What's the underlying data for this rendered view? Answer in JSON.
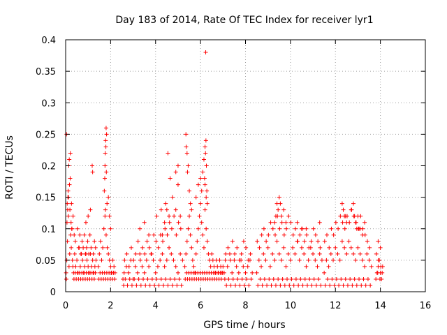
{
  "chart_data": {
    "type": "scatter",
    "title": "Day 183 of 2014, Rate Of TEC Index for receiver lyr1",
    "xlabel": "GPS time / hours",
    "ylabel": "ROTI / TECUs",
    "xlim": [
      0,
      16
    ],
    "ylim": [
      0,
      0.4
    ],
    "grid": true,
    "x_ticks": [
      0,
      2,
      4,
      6,
      8,
      10,
      12,
      14,
      16
    ],
    "x_tick_labels": [
      "0",
      "2",
      "4",
      "6",
      "8",
      "10",
      "12",
      "14",
      "16"
    ],
    "y_ticks": [
      0,
      0.05,
      0.1,
      0.15,
      0.2,
      0.25,
      0.3,
      0.35,
      0.4
    ],
    "y_tick_labels": [
      "0",
      "0.05",
      "0.1",
      "0.15",
      "0.2",
      "0.25",
      "0.3",
      "0.35",
      "0.4"
    ],
    "marker": "+",
    "marker_color": "#ff0000",
    "series": [
      {
        "name": "lyr1 ROTI",
        "x": [
          0.02,
          0.05,
          0.08,
          0.12,
          0.15,
          0.18,
          0.22,
          0.25,
          0.3,
          0.35,
          0.4,
          0.45,
          0.5,
          0.55,
          0.6,
          0.65,
          0.7,
          0.75,
          0.8,
          0.85,
          0.9,
          0.95,
          1.0,
          1.05,
          1.1,
          1.15,
          1.2,
          1.25,
          1.3,
          1.35,
          0.04,
          0.1,
          0.14,
          0.2,
          0.27,
          0.33,
          0.38,
          0.43,
          0.52,
          0.58,
          0.63,
          0.68,
          0.73,
          0.78,
          0.83,
          0.88,
          0.93,
          0.98,
          1.03,
          1.08,
          1.13,
          1.18,
          1.23,
          1.28,
          1.33,
          0.03,
          0.07,
          0.11,
          0.16,
          0.19,
          0.24,
          0.28,
          0.32,
          0.37,
          0.42,
          0.47,
          0.53,
          0.57,
          0.62,
          0.67,
          0.72,
          0.77,
          0.82,
          0.87,
          0.92,
          0.97,
          1.02,
          1.07,
          1.12,
          1.17,
          1.22,
          1.27,
          1.32,
          0.06,
          0.09,
          0.13,
          0.17,
          0.21,
          0.26,
          1.1,
          1.2,
          1.0,
          0.9,
          1.45,
          1.5,
          1.55,
          1.6,
          1.65,
          1.7,
          1.75,
          1.8,
          1.85,
          1.9,
          1.95,
          2.0,
          2.05,
          2.1,
          2.15,
          2.2,
          1.48,
          1.53,
          1.58,
          1.63,
          1.68,
          1.73,
          1.78,
          1.83,
          1.88,
          1.93,
          1.98,
          2.03,
          2.08,
          2.13,
          2.18,
          1.72,
          1.75,
          1.78,
          1.8,
          1.82,
          1.76,
          1.74,
          1.79,
          1.81,
          1.77,
          1.84,
          1.9,
          1.95,
          2.0,
          2.55,
          2.6,
          2.7,
          2.8,
          2.9,
          3.0,
          3.1,
          3.2,
          3.3,
          3.4,
          3.5,
          3.6,
          3.7,
          3.8,
          3.9,
          4.0,
          4.1,
          4.2,
          4.3,
          4.4,
          4.5,
          4.6,
          4.7,
          4.8,
          4.9,
          5.0,
          5.1,
          5.2,
          2.58,
          2.65,
          2.75,
          2.85,
          2.95,
          3.05,
          3.15,
          3.25,
          3.35,
          3.45,
          3.55,
          3.65,
          3.75,
          3.85,
          3.95,
          4.05,
          4.15,
          4.25,
          4.35,
          4.45,
          4.55,
          4.65,
          4.75,
          4.85,
          4.95,
          5.05,
          5.15,
          2.62,
          2.72,
          2.82,
          2.92,
          3.02,
          3.12,
          3.22,
          3.32,
          3.42,
          3.52,
          3.62,
          3.72,
          3.82,
          3.92,
          4.02,
          4.12,
          4.22,
          4.32,
          4.42,
          4.52,
          4.62,
          4.72,
          4.82,
          4.92,
          5.02,
          5.12,
          3.3,
          3.5,
          3.7,
          4.05,
          4.25,
          4.45,
          4.6,
          4.75,
          4.9,
          5.0,
          5.1,
          4.5,
          4.4,
          4.3,
          5.3,
          5.35,
          5.4,
          5.45,
          5.5,
          5.55,
          5.6,
          5.65,
          5.7,
          5.75,
          5.8,
          5.85,
          5.9,
          5.95,
          6.0,
          6.05,
          6.1,
          6.15,
          6.2,
          6.25,
          6.3,
          6.35,
          6.4,
          6.45,
          6.5,
          6.55,
          6.6,
          6.65,
          6.7,
          6.75,
          6.8,
          6.85,
          6.9,
          6.95,
          7.0,
          5.32,
          5.38,
          5.42,
          5.48,
          5.52,
          5.58,
          5.62,
          5.68,
          5.72,
          5.78,
          5.82,
          5.88,
          5.92,
          5.98,
          6.02,
          6.08,
          6.12,
          6.18,
          6.22,
          6.28,
          6.32,
          6.38,
          6.42,
          6.48,
          6.52,
          6.58,
          6.62,
          6.68,
          6.72,
          6.78,
          6.82,
          6.88,
          6.92,
          6.98,
          5.35,
          5.4,
          5.45,
          5.36,
          5.42,
          5.5,
          5.55,
          5.6,
          5.8,
          5.9,
          6.0,
          6.05,
          6.1,
          6.15,
          6.2,
          6.25,
          6.3,
          6.2,
          6.22,
          6.24,
          6.26,
          6.18,
          6.28,
          5.0,
          4.9,
          4.65,
          4.55,
          6.23,
          7.05,
          7.1,
          7.2,
          7.3,
          7.4,
          7.5,
          7.6,
          7.7,
          7.8,
          7.9,
          8.0,
          8.1,
          8.2,
          8.3,
          7.08,
          7.15,
          7.25,
          7.35,
          7.45,
          7.55,
          7.65,
          7.75,
          7.85,
          7.95,
          8.05,
          8.15,
          8.25,
          7.12,
          7.22,
          7.32,
          7.42,
          7.52,
          7.62,
          7.72,
          7.82,
          7.92,
          8.02,
          8.12,
          8.22,
          8.5,
          8.6,
          8.7,
          8.8,
          8.9,
          9.0,
          9.1,
          9.2,
          9.3,
          9.4,
          9.5,
          9.6,
          9.7,
          9.8,
          9.9,
          10.0,
          10.1,
          10.2,
          10.3,
          10.4,
          10.5,
          10.6,
          10.7,
          10.8,
          10.9,
          11.0,
          11.1,
          11.2,
          11.3,
          11.4,
          8.55,
          8.65,
          8.75,
          8.85,
          8.95,
          9.05,
          9.15,
          9.25,
          9.35,
          9.45,
          9.55,
          9.65,
          9.75,
          9.85,
          9.95,
          10.05,
          10.15,
          10.25,
          10.35,
          10.45,
          10.55,
          10.65,
          10.75,
          10.85,
          10.95,
          11.05,
          11.15,
          11.25,
          11.35,
          8.52,
          8.62,
          8.72,
          8.82,
          8.92,
          9.02,
          9.12,
          9.22,
          9.32,
          9.42,
          9.52,
          9.62,
          9.72,
          9.82,
          9.92,
          10.02,
          10.12,
          10.22,
          10.32,
          10.42,
          10.52,
          10.62,
          10.72,
          10.82,
          10.92,
          11.02,
          11.12,
          11.22,
          11.32,
          9.4,
          9.45,
          9.5,
          9.55,
          9.6,
          9.3,
          9.35,
          9.7,
          9.8,
          10.3,
          10.5,
          10.7,
          11.3,
          11.5,
          11.6,
          11.7,
          11.8,
          11.9,
          12.0,
          12.1,
          12.2,
          12.3,
          12.4,
          12.5,
          12.6,
          12.7,
          12.8,
          12.9,
          13.0,
          13.1,
          13.2,
          13.3,
          13.4,
          13.5,
          13.6,
          11.55,
          11.65,
          11.75,
          11.85,
          11.95,
          12.05,
          12.15,
          12.25,
          12.35,
          12.45,
          12.55,
          12.65,
          12.75,
          12.85,
          12.95,
          13.05,
          13.15,
          13.25,
          13.35,
          13.45,
          13.55,
          11.52,
          11.62,
          11.72,
          11.82,
          11.92,
          12.02,
          12.12,
          12.22,
          12.32,
          12.42,
          12.52,
          12.62,
          12.72,
          12.82,
          12.92,
          13.02,
          13.12,
          13.22,
          13.32,
          13.42,
          13.52,
          12.3,
          12.35,
          12.4,
          12.5,
          12.7,
          12.8,
          12.85,
          12.9,
          12.95,
          13.0,
          13.1,
          13.2,
          13.3,
          12.45,
          13.05,
          13.8,
          13.85,
          13.9,
          13.95,
          14.0,
          14.05,
          14.1,
          13.82,
          13.88,
          13.92,
          13.98,
          14.02,
          14.08,
          13.9,
          14.0
        ],
        "y": [
          0.03,
          0.05,
          0.08,
          0.12,
          0.04,
          0.06,
          0.09,
          0.07,
          0.05,
          0.03,
          0.06,
          0.04,
          0.05,
          0.03,
          0.07,
          0.04,
          0.06,
          0.05,
          0.03,
          0.04,
          0.06,
          0.05,
          0.04,
          0.03,
          0.06,
          0.04,
          0.05,
          0.03,
          0.04,
          0.05,
          0.25,
          0.15,
          0.2,
          0.18,
          0.1,
          0.12,
          0.09,
          0.08,
          0.1,
          0.07,
          0.09,
          0.06,
          0.08,
          0.07,
          0.09,
          0.06,
          0.07,
          0.08,
          0.06,
          0.09,
          0.07,
          0.2,
          0.06,
          0.08,
          0.07,
          0.02,
          0.14,
          0.16,
          0.21,
          0.13,
          0.11,
          0.1,
          0.04,
          0.02,
          0.03,
          0.02,
          0.03,
          0.02,
          0.03,
          0.02,
          0.03,
          0.02,
          0.03,
          0.02,
          0.03,
          0.02,
          0.03,
          0.02,
          0.03,
          0.02,
          0.03,
          0.02,
          0.03,
          0.11,
          0.13,
          0.15,
          0.17,
          0.22,
          0.14,
          0.13,
          0.19,
          0.12,
          0.11,
          0.04,
          0.06,
          0.08,
          0.05,
          0.07,
          0.1,
          0.12,
          0.09,
          0.07,
          0.06,
          0.05,
          0.04,
          0.03,
          0.05,
          0.04,
          0.03,
          0.02,
          0.03,
          0.02,
          0.03,
          0.02,
          0.03,
          0.02,
          0.03,
          0.02,
          0.03,
          0.02,
          0.03,
          0.02,
          0.03,
          0.02,
          0.16,
          0.2,
          0.24,
          0.26,
          0.25,
          0.22,
          0.18,
          0.23,
          0.19,
          0.13,
          0.14,
          0.15,
          0.12,
          0.1,
          0.02,
          0.03,
          0.04,
          0.03,
          0.05,
          0.02,
          0.04,
          0.03,
          0.06,
          0.04,
          0.03,
          0.05,
          0.04,
          0.06,
          0.05,
          0.03,
          0.04,
          0.05,
          0.06,
          0.04,
          0.05,
          0.07,
          0.06,
          0.05,
          0.04,
          0.03,
          0.06,
          0.05,
          0.01,
          0.02,
          0.01,
          0.02,
          0.01,
          0.02,
          0.01,
          0.02,
          0.01,
          0.02,
          0.01,
          0.02,
          0.01,
          0.02,
          0.01,
          0.02,
          0.01,
          0.02,
          0.01,
          0.02,
          0.01,
          0.02,
          0.01,
          0.02,
          0.01,
          0.02,
          0.01,
          0.05,
          0.06,
          0.04,
          0.07,
          0.05,
          0.06,
          0.08,
          0.05,
          0.07,
          0.06,
          0.08,
          0.07,
          0.06,
          0.09,
          0.08,
          0.07,
          0.09,
          0.08,
          0.1,
          0.09,
          0.11,
          0.1,
          0.12,
          0.09,
          0.11,
          0.1,
          0.1,
          0.11,
          0.09,
          0.12,
          0.13,
          0.14,
          0.12,
          0.15,
          0.13,
          0.17,
          0.12,
          0.13,
          0.11,
          0.09,
          0.04,
          0.06,
          0.08,
          0.1,
          0.12,
          0.09,
          0.07,
          0.05,
          0.04,
          0.03,
          0.06,
          0.08,
          0.1,
          0.12,
          0.14,
          0.11,
          0.09,
          0.07,
          0.13,
          0.1,
          0.08,
          0.06,
          0.05,
          0.04,
          0.06,
          0.05,
          0.04,
          0.03,
          0.05,
          0.04,
          0.03,
          0.05,
          0.04,
          0.03,
          0.04,
          0.02,
          0.03,
          0.02,
          0.03,
          0.02,
          0.03,
          0.02,
          0.03,
          0.02,
          0.03,
          0.02,
          0.03,
          0.02,
          0.03,
          0.02,
          0.03,
          0.02,
          0.03,
          0.02,
          0.03,
          0.02,
          0.03,
          0.02,
          0.03,
          0.02,
          0.03,
          0.02,
          0.03,
          0.02,
          0.03,
          0.02,
          0.03,
          0.02,
          0.03,
          0.25,
          0.22,
          0.2,
          0.23,
          0.19,
          0.16,
          0.14,
          0.13,
          0.15,
          0.17,
          0.18,
          0.16,
          0.19,
          0.21,
          0.17,
          0.15,
          0.14,
          0.23,
          0.22,
          0.24,
          0.2,
          0.18,
          0.16,
          0.2,
          0.19,
          0.18,
          0.22,
          0.38,
          0.03,
          0.05,
          0.04,
          0.06,
          0.03,
          0.05,
          0.04,
          0.03,
          0.05,
          0.04,
          0.03,
          0.04,
          0.05,
          0.03,
          0.02,
          0.01,
          0.02,
          0.01,
          0.02,
          0.01,
          0.02,
          0.01,
          0.02,
          0.01,
          0.02,
          0.01,
          0.02,
          0.06,
          0.07,
          0.05,
          0.08,
          0.06,
          0.07,
          0.05,
          0.06,
          0.08,
          0.07,
          0.05,
          0.06,
          0.03,
          0.05,
          0.04,
          0.06,
          0.05,
          0.07,
          0.04,
          0.06,
          0.05,
          0.08,
          0.06,
          0.05,
          0.07,
          0.04,
          0.06,
          0.05,
          0.07,
          0.06,
          0.08,
          0.05,
          0.07,
          0.06,
          0.04,
          0.05,
          0.07,
          0.06,
          0.05,
          0.04,
          0.06,
          0.05,
          0.01,
          0.02,
          0.01,
          0.02,
          0.01,
          0.02,
          0.01,
          0.02,
          0.01,
          0.02,
          0.01,
          0.02,
          0.01,
          0.02,
          0.01,
          0.02,
          0.01,
          0.02,
          0.01,
          0.02,
          0.01,
          0.02,
          0.01,
          0.02,
          0.01,
          0.02,
          0.01,
          0.02,
          0.01,
          0.08,
          0.07,
          0.09,
          0.1,
          0.08,
          0.09,
          0.11,
          0.1,
          0.09,
          0.12,
          0.1,
          0.11,
          0.09,
          0.1,
          0.12,
          0.11,
          0.09,
          0.1,
          0.08,
          0.09,
          0.1,
          0.08,
          0.09,
          0.07,
          0.08,
          0.1,
          0.09,
          0.08,
          0.07,
          0.14,
          0.13,
          0.15,
          0.14,
          0.12,
          0.11,
          0.12,
          0.13,
          0.11,
          0.11,
          0.1,
          0.1,
          0.11,
          0.03,
          0.05,
          0.04,
          0.06,
          0.05,
          0.07,
          0.06,
          0.05,
          0.08,
          0.07,
          0.06,
          0.08,
          0.07,
          0.06,
          0.05,
          0.07,
          0.06,
          0.05,
          0.04,
          0.06,
          0.05,
          0.04,
          0.01,
          0.02,
          0.01,
          0.02,
          0.01,
          0.02,
          0.01,
          0.02,
          0.01,
          0.02,
          0.01,
          0.02,
          0.01,
          0.02,
          0.01,
          0.02,
          0.01,
          0.02,
          0.01,
          0.02,
          0.01,
          0.08,
          0.09,
          0.07,
          0.1,
          0.09,
          0.11,
          0.1,
          0.12,
          0.11,
          0.1,
          0.12,
          0.11,
          0.13,
          0.12,
          0.11,
          0.1,
          0.12,
          0.1,
          0.09,
          0.08,
          0.07,
          0.14,
          0.13,
          0.12,
          0.11,
          0.13,
          0.14,
          0.12,
          0.11,
          0.1,
          0.12,
          0.1,
          0.09,
          0.11,
          0.12,
          0.1,
          0.02,
          0.03,
          0.04,
          0.05,
          0.03,
          0.02,
          0.04,
          0.06,
          0.03,
          0.05,
          0.02,
          0.04,
          0.03,
          0.08,
          0.07
        ]
      }
    ]
  }
}
